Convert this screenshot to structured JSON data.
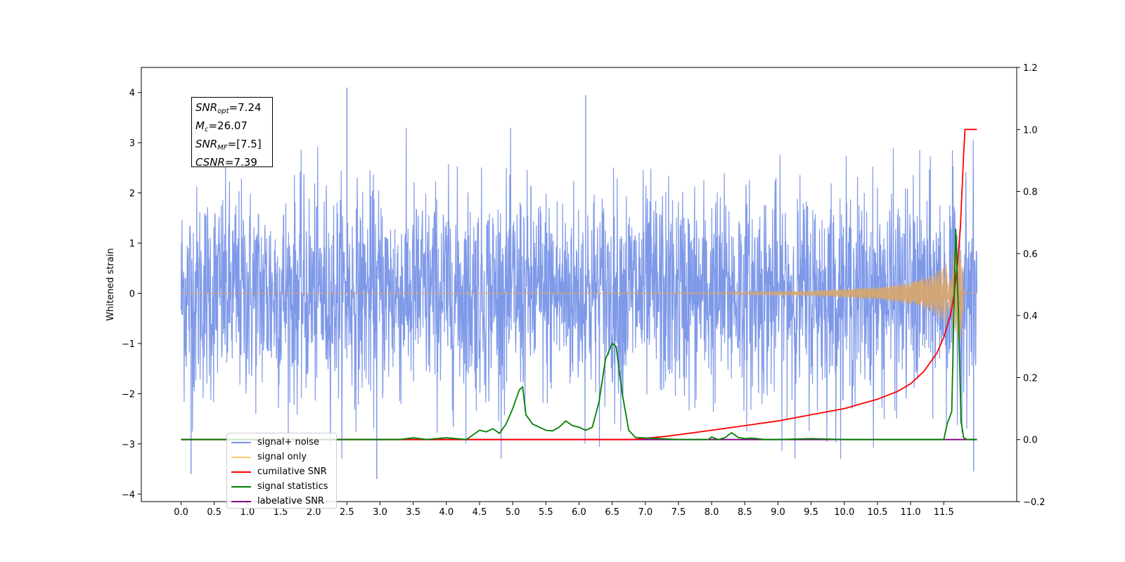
{
  "info_box": {
    "snr_opt": {
      "label": "SNR",
      "sub": "opt",
      "value": "=7.24"
    },
    "mc": {
      "label": "M",
      "sub": "c",
      "value": "=26.07"
    },
    "snr_mf": {
      "label": "SNR",
      "sub": "MF",
      "value": "=[7.5]"
    },
    "csnr": {
      "label": "CSNR",
      "value": "=7.39"
    }
  },
  "legend": [
    {
      "label": "signal+ noise",
      "color": "#7893e8"
    },
    {
      "label": "signal only",
      "color": "#ffc973"
    },
    {
      "label": "cumilative SNR",
      "color": "#ff0000"
    },
    {
      "label": "signal statistics",
      "color": "#008000"
    },
    {
      "label": "labelative SNR",
      "color": "#800080"
    }
  ],
  "chart_data": {
    "type": "line",
    "ylabel": "Whitened strain",
    "xlim": [
      -0.6,
      12.6
    ],
    "ylim": [
      -4.15,
      4.5
    ],
    "y2lim": [
      -0.2,
      1.2
    ],
    "x_ticks": [
      "0.0",
      "0.5",
      "1.0",
      "1.5",
      "2.0",
      "2.5",
      "3.0",
      "3.5",
      "4.0",
      "4.5",
      "5.0",
      "5.5",
      "6.0",
      "6.5",
      "7.0",
      "7.5",
      "8.0",
      "8.5",
      "9.0",
      "9.5",
      "10.0",
      "10.5",
      "11.0",
      "11.5"
    ],
    "y_ticks": [
      "−4",
      "−3",
      "−2",
      "−1",
      "0",
      "1",
      "2",
      "3",
      "4"
    ],
    "y2_ticks": [
      "−0.2",
      "0.0",
      "0.2",
      "0.4",
      "0.6",
      "0.8",
      "1.0",
      "1.2"
    ],
    "series": [
      {
        "name": "signal+ noise",
        "axis": "left",
        "description_values": "whitened strain noise roughly spanning -3 to 3 with sparse spikes",
        "x_range": [
          0.0,
          12.0
        ],
        "typical_min": -3.0,
        "typical_max": 3.0,
        "peaks": [
          [
            2.5,
            4.1
          ],
          [
            6.1,
            3.95
          ],
          [
            0.15,
            -3.6
          ],
          [
            2.95,
            -3.7
          ],
          [
            11.95,
            -3.55
          ]
        ]
      },
      {
        "name": "signal only",
        "axis": "left",
        "x_range": [
          0.0,
          12.0
        ],
        "envelope": [
          [
            0.0,
            0.0
          ],
          [
            8.0,
            0.01
          ],
          [
            9.5,
            0.05
          ],
          [
            10.5,
            0.12
          ],
          [
            11.0,
            0.22
          ],
          [
            11.3,
            0.35
          ],
          [
            11.5,
            0.55
          ],
          [
            11.65,
            0.8
          ],
          [
            11.75,
            1.0
          ],
          [
            11.82,
            0.0
          ]
        ]
      },
      {
        "name": "cumilative SNR",
        "axis": "right",
        "x": [
          0.0,
          6.8,
          7.3,
          8.0,
          8.5,
          9.0,
          9.5,
          10.0,
          10.5,
          10.8,
          11.0,
          11.2,
          11.4,
          11.5,
          11.6,
          11.65,
          11.7,
          11.75,
          11.8,
          11.82,
          11.9,
          12.0
        ],
        "y": [
          0.0,
          0.0,
          0.01,
          0.03,
          0.045,
          0.06,
          0.08,
          0.1,
          0.13,
          0.155,
          0.18,
          0.22,
          0.28,
          0.33,
          0.4,
          0.46,
          0.55,
          0.68,
          0.92,
          1.0,
          1.0,
          1.0
        ]
      },
      {
        "name": "signal statistics",
        "axis": "right",
        "x": [
          0.0,
          3.3,
          3.5,
          3.7,
          4.0,
          4.3,
          4.5,
          4.6,
          4.7,
          4.8,
          4.9,
          5.0,
          5.1,
          5.15,
          5.2,
          5.3,
          5.5,
          5.6,
          5.7,
          5.8,
          5.9,
          6.0,
          6.1,
          6.2,
          6.3,
          6.4,
          6.5,
          6.56,
          6.65,
          6.75,
          6.85,
          7.0,
          7.5,
          7.95,
          8.0,
          8.1,
          8.2,
          8.3,
          8.4,
          8.5,
          8.6,
          8.8,
          9.0,
          9.5,
          10.0,
          11.0,
          11.5,
          11.55,
          11.62,
          11.68,
          11.72,
          11.76,
          11.8,
          11.85,
          11.9,
          12.0
        ],
        "y": [
          0.0,
          0.0,
          0.006,
          0.0,
          0.006,
          0.0,
          0.03,
          0.025,
          0.035,
          0.02,
          0.05,
          0.1,
          0.16,
          0.17,
          0.08,
          0.05,
          0.03,
          0.028,
          0.04,
          0.06,
          0.045,
          0.04,
          0.03,
          0.04,
          0.12,
          0.26,
          0.31,
          0.3,
          0.15,
          0.03,
          0.007,
          0.005,
          0.0,
          0.0,
          0.008,
          0.0,
          0.006,
          0.022,
          0.007,
          0.003,
          0.005,
          0.0,
          0.0,
          0.003,
          0.0,
          0.0,
          0.0,
          0.05,
          0.09,
          0.68,
          0.42,
          0.06,
          0.006,
          0.0,
          0.0,
          0.0
        ]
      },
      {
        "name": "labelative SNR",
        "axis": "right",
        "x": [
          0.0,
          12.0
        ],
        "y": [
          0.0,
          0.0
        ]
      }
    ]
  }
}
